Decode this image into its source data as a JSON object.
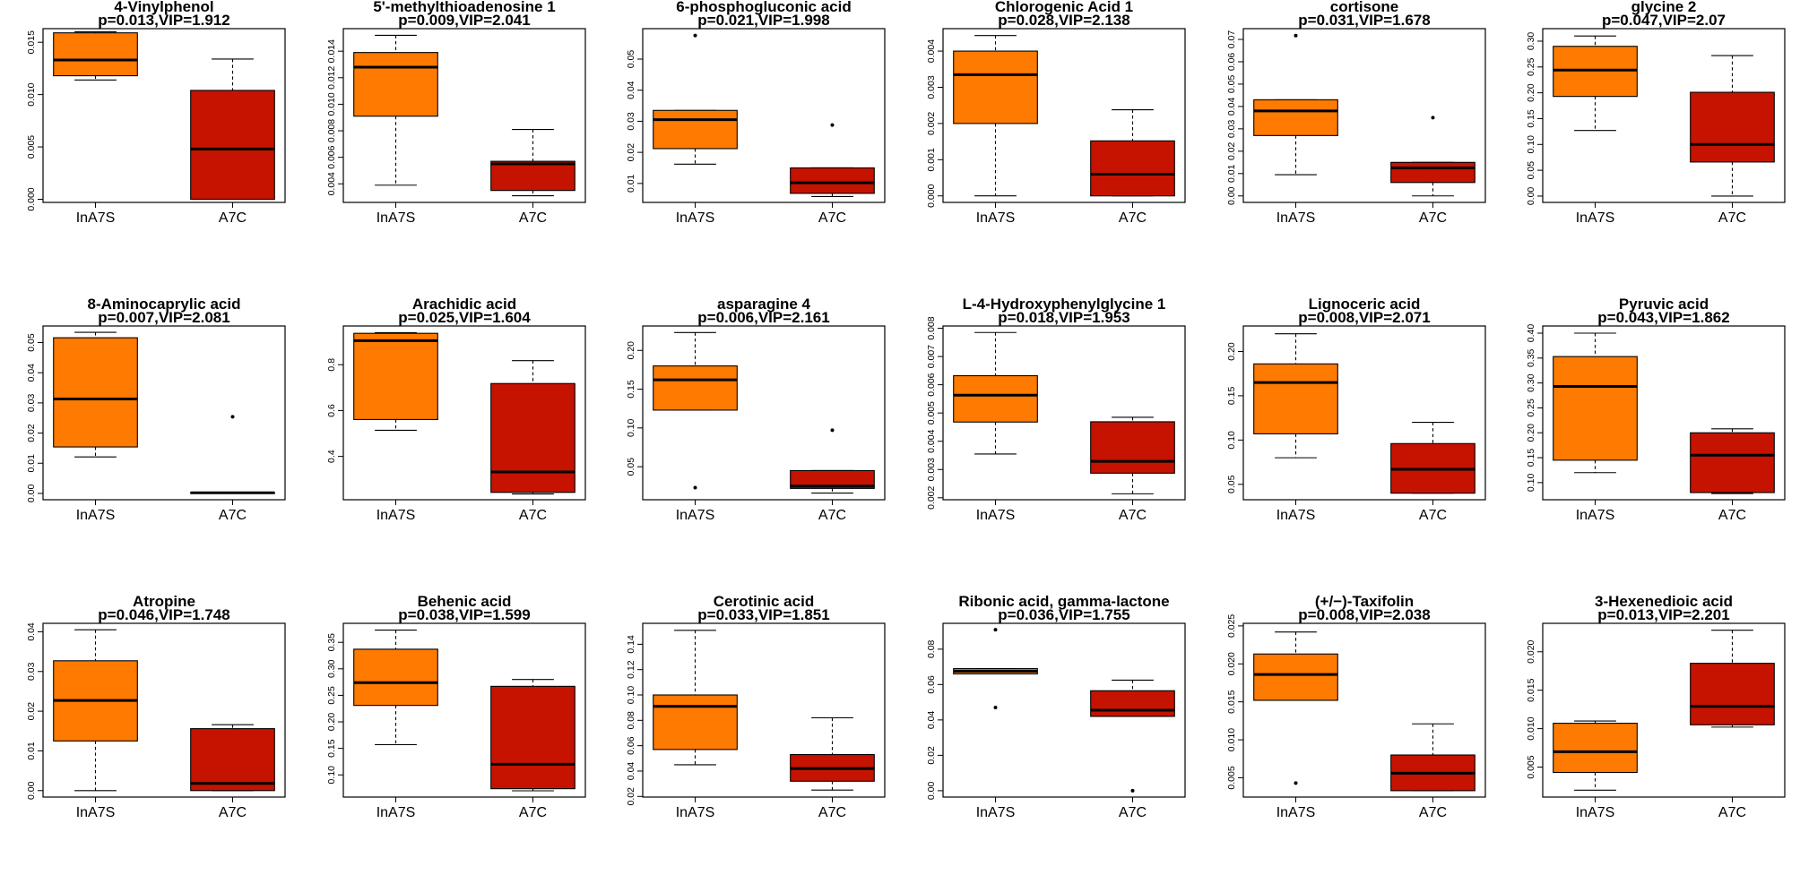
{
  "colors": {
    "group1_fill": "#fe7a00",
    "group2_fill": "#c51300",
    "frame": "#000000"
  },
  "chart_data": [
    {
      "type": "box",
      "title": "4-Vinylphenol",
      "subtitle": "p=0.013,VIP=1.912",
      "categories": [
        "InA7S",
        "A7C"
      ],
      "ylim": [
        -0.0003,
        0.0163
      ],
      "yticks": [
        0,
        0.005,
        0.01,
        0.015
      ],
      "ytick_labels": [
        "0.000",
        "0.005",
        "0.010",
        "0.015"
      ],
      "boxes": [
        {
          "whislo": 0.0114,
          "q1": 0.0118,
          "med": 0.0133,
          "q3": 0.0159,
          "whishi": 0.016,
          "outliers": []
        },
        {
          "whislo": 0,
          "q1": 0,
          "med": 0.0048,
          "q3": 0.0104,
          "whishi": 0.0134,
          "outliers": []
        }
      ]
    },
    {
      "type": "box",
      "title": "5'-methylthioadenosine 1",
      "subtitle": "p=0.009,VIP=2.041",
      "categories": [
        "InA7S",
        "A7C"
      ],
      "ylim": [
        0.0026,
        0.0157
      ],
      "yticks": [
        0.004,
        0.006,
        0.008,
        0.01,
        0.012,
        0.014
      ],
      "ytick_labels": [
        "0.004",
        "0.006",
        "0.008",
        "0.010",
        "0.012",
        "0.014"
      ],
      "boxes": [
        {
          "whislo": 0.0039,
          "q1": 0.0091,
          "med": 0.0128,
          "q3": 0.0139,
          "whishi": 0.0152,
          "outliers": []
        },
        {
          "whislo": 0.0031,
          "q1": 0.0035,
          "med": 0.0055,
          "q3": 0.0057,
          "whishi": 0.0081,
          "outliers": []
        }
      ]
    },
    {
      "type": "box",
      "title": "6-phosphogluconic acid",
      "subtitle": "p=0.021,VIP=1.998",
      "categories": [
        "InA7S",
        "A7C"
      ],
      "ylim": [
        0.0039,
        0.0598
      ],
      "yticks": [
        0.01,
        0.02,
        0.03,
        0.04,
        0.05
      ],
      "ytick_labels": [
        "0.01",
        "0.02",
        "0.03",
        "0.04",
        "0.05"
      ],
      "boxes": [
        {
          "whislo": 0.0162,
          "q1": 0.0212,
          "med": 0.0305,
          "q3": 0.0335,
          "whishi": 0.0335,
          "outliers": [
            0.0576
          ]
        },
        {
          "whislo": 0.0058,
          "q1": 0.0068,
          "med": 0.0102,
          "q3": 0.015,
          "whishi": 0.015,
          "outliers": [
            0.0288
          ]
        }
      ]
    },
    {
      "type": "box",
      "title": "Chlorogenic Acid 1",
      "subtitle": "p=0.028,VIP=2.138",
      "categories": [
        "InA7S",
        "A7C"
      ],
      "ylim": [
        -0.00018,
        0.00462
      ],
      "yticks": [
        0,
        0.001,
        0.002,
        0.003,
        0.004
      ],
      "ytick_labels": [
        "0.000",
        "0.001",
        "0.002",
        "0.003",
        "0.004"
      ],
      "boxes": [
        {
          "whislo": 0,
          "q1": 0.002,
          "med": 0.00335,
          "q3": 0.004,
          "whishi": 0.00443,
          "outliers": []
        },
        {
          "whislo": 0,
          "q1": 0,
          "med": 0.0006,
          "q3": 0.00152,
          "whishi": 0.00238,
          "outliers": []
        }
      ]
    },
    {
      "type": "box",
      "title": "cortisone",
      "subtitle": "p=0.031,VIP=1.678",
      "categories": [
        "InA7S",
        "A7C"
      ],
      "ylim": [
        -0.0029,
        0.0748
      ],
      "yticks": [
        0,
        0.01,
        0.02,
        0.03,
        0.04,
        0.05,
        0.06,
        0.07
      ],
      "ytick_labels": [
        "0.00",
        "0.01",
        "0.02",
        "0.03",
        "0.04",
        "0.05",
        "0.06",
        "0.07"
      ],
      "boxes": [
        {
          "whislo": 0.0095,
          "q1": 0.027,
          "med": 0.038,
          "q3": 0.043,
          "whishi": 0.043,
          "outliers": [
            0.0717
          ]
        },
        {
          "whislo": 0,
          "q1": 0.006,
          "med": 0.0125,
          "q3": 0.015,
          "whishi": 0.015,
          "outliers": [
            0.035
          ]
        }
      ]
    },
    {
      "type": "box",
      "title": "glycine 2",
      "subtitle": "p=0.047,VIP=2.07",
      "categories": [
        "InA7S",
        "A7C"
      ],
      "ylim": [
        -0.0122,
        0.3242
      ],
      "yticks": [
        0,
        0.05,
        0.1,
        0.15,
        0.2,
        0.25,
        0.3
      ],
      "ytick_labels": [
        "0.00",
        "0.05",
        "0.10",
        "0.15",
        "0.20",
        "0.25",
        "0.30"
      ],
      "boxes": [
        {
          "whislo": 0.127,
          "q1": 0.193,
          "med": 0.244,
          "q3": 0.29,
          "whishi": 0.31,
          "outliers": []
        },
        {
          "whislo": 0,
          "q1": 0.066,
          "med": 0.1,
          "q3": 0.201,
          "whishi": 0.272,
          "outliers": []
        }
      ]
    },
    {
      "type": "box",
      "title": "8-Aminocaprylic acid",
      "subtitle": "p=0.007,VIP=2.081",
      "categories": [
        "InA7S",
        "A7C"
      ],
      "ylim": [
        -0.0021,
        0.0555
      ],
      "yticks": [
        0,
        0.01,
        0.02,
        0.03,
        0.04,
        0.05
      ],
      "ytick_labels": [
        "0.00",
        "0.01",
        "0.02",
        "0.03",
        "0.04",
        "0.05"
      ],
      "boxes": [
        {
          "whislo": 0.0121,
          "q1": 0.0154,
          "med": 0.0313,
          "q3": 0.0516,
          "whishi": 0.0534,
          "outliers": []
        },
        {
          "whislo": 0,
          "q1": 0,
          "med": 0.0002,
          "q3": 0.0003,
          "whishi": 0.0003,
          "outliers": [
            0.0254
          ]
        }
      ]
    },
    {
      "type": "box",
      "title": "Arachidic acid",
      "subtitle": "p=0.025,VIP=1.604",
      "categories": [
        "InA7S",
        "A7C"
      ],
      "ylim": [
        0.211,
        0.969
      ],
      "yticks": [
        0.4,
        0.6,
        0.8
      ],
      "ytick_labels": [
        "0.4",
        "0.6",
        "0.8"
      ],
      "boxes": [
        {
          "whislo": 0.514,
          "q1": 0.561,
          "med": 0.905,
          "q3": 0.937,
          "whishi": 0.94,
          "outliers": []
        },
        {
          "whislo": 0.236,
          "q1": 0.243,
          "med": 0.332,
          "q3": 0.718,
          "whishi": 0.818,
          "outliers": []
        }
      ]
    },
    {
      "type": "box",
      "title": "asparagine 4",
      "subtitle": "p=0.006,VIP=2.161",
      "categories": [
        "InA7S",
        "A7C"
      ],
      "ylim": [
        0.0074,
        0.2315
      ],
      "yticks": [
        0.05,
        0.1,
        0.15,
        0.2
      ],
      "ytick_labels": [
        "0.05",
        "0.10",
        "0.15",
        "0.20"
      ],
      "boxes": [
        {
          "whislo": 0.123,
          "q1": 0.123,
          "med": 0.162,
          "q3": 0.18,
          "whishi": 0.223,
          "outliers": [
            0.023
          ]
        },
        {
          "whislo": 0.016,
          "q1": 0.022,
          "med": 0.025,
          "q3": 0.045,
          "whishi": 0.045,
          "outliers": [
            0.097
          ]
        }
      ]
    },
    {
      "type": "box",
      "title": "L-4-Hydroxyphenylglycine 1",
      "subtitle": "p=0.018,VIP=1.953",
      "categories": [
        "InA7S",
        "A7C"
      ],
      "ylim": [
        0.00193,
        0.00808
      ],
      "yticks": [
        0.002,
        0.003,
        0.004,
        0.005,
        0.006,
        0.007,
        0.008
      ],
      "ytick_labels": [
        "0.002",
        "0.003",
        "0.004",
        "0.005",
        "0.006",
        "0.007",
        "0.008"
      ],
      "boxes": [
        {
          "whislo": 0.00355,
          "q1": 0.00468,
          "med": 0.00563,
          "q3": 0.00632,
          "whishi": 0.00785,
          "outliers": []
        },
        {
          "whislo": 0.00214,
          "q1": 0.00287,
          "med": 0.00329,
          "q3": 0.00469,
          "whishi": 0.00485,
          "outliers": []
        }
      ]
    },
    {
      "type": "box",
      "title": "Lignoceric acid",
      "subtitle": "p=0.008,VIP=2.071",
      "categories": [
        "InA7S",
        "A7C"
      ],
      "ylim": [
        0.0326,
        0.2288
      ],
      "yticks": [
        0.05,
        0.1,
        0.15,
        0.2
      ],
      "ytick_labels": [
        "0.05",
        "0.10",
        "0.15",
        "0.20"
      ],
      "boxes": [
        {
          "whislo": 0.08,
          "q1": 0.107,
          "med": 0.165,
          "q3": 0.186,
          "whishi": 0.22,
          "outliers": []
        },
        {
          "whislo": 0.04,
          "q1": 0.04,
          "med": 0.067,
          "q3": 0.096,
          "whishi": 0.12,
          "outliers": []
        }
      ]
    },
    {
      "type": "box",
      "title": "Pyruvic acid",
      "subtitle": "p=0.043,VIP=1.862",
      "categories": [
        "InA7S",
        "A7C"
      ],
      "ylim": [
        0.0656,
        0.4144
      ],
      "yticks": [
        0.1,
        0.15,
        0.2,
        0.25,
        0.3,
        0.35,
        0.4
      ],
      "ytick_labels": [
        "0.10",
        "0.15",
        "0.20",
        "0.25",
        "0.30",
        "0.35",
        "0.40"
      ],
      "boxes": [
        {
          "whislo": 0.12,
          "q1": 0.145,
          "med": 0.293,
          "q3": 0.353,
          "whishi": 0.4,
          "outliers": []
        },
        {
          "whislo": 0.078,
          "q1": 0.08,
          "med": 0.155,
          "q3": 0.2,
          "whishi": 0.208,
          "outliers": []
        }
      ]
    },
    {
      "type": "box",
      "title": "Atropine",
      "subtitle": "p=0.046,VIP=1.748",
      "categories": [
        "InA7S",
        "A7C"
      ],
      "ylim": [
        -0.00163,
        0.04213
      ],
      "yticks": [
        0,
        0.01,
        0.02,
        0.03,
        0.04
      ],
      "ytick_labels": [
        "0.00",
        "0.01",
        "0.02",
        "0.03",
        "0.04"
      ],
      "boxes": [
        {
          "whislo": 0,
          "q1": 0.0125,
          "med": 0.0227,
          "q3": 0.0327,
          "whishi": 0.0405,
          "outliers": []
        },
        {
          "whislo": 0,
          "q1": 0,
          "med": 0.0018,
          "q3": 0.0156,
          "whishi": 0.0166,
          "outliers": []
        }
      ]
    },
    {
      "type": "box",
      "title": "Behenic acid",
      "subtitle": "p=0.038,VIP=1.599",
      "categories": [
        "InA7S",
        "A7C"
      ],
      "ylim": [
        0.0582,
        0.3858
      ],
      "yticks": [
        0.1,
        0.15,
        0.2,
        0.25,
        0.3,
        0.35
      ],
      "ytick_labels": [
        "0.10",
        "0.15",
        "0.20",
        "0.25",
        "0.30",
        "0.35"
      ],
      "boxes": [
        {
          "whislo": 0.157,
          "q1": 0.231,
          "med": 0.274,
          "q3": 0.337,
          "whishi": 0.373,
          "outliers": []
        },
        {
          "whislo": 0.07,
          "q1": 0.074,
          "med": 0.12,
          "q3": 0.267,
          "whishi": 0.28,
          "outliers": []
        }
      ]
    },
    {
      "type": "box",
      "title": "Cerotinic acid",
      "subtitle": "p=0.033,VIP=1.851",
      "categories": [
        "InA7S",
        "A7C"
      ],
      "ylim": [
        0.0195,
        0.1565
      ],
      "yticks": [
        0.02,
        0.04,
        0.06,
        0.08,
        0.1,
        0.12,
        0.14
      ],
      "ytick_labels": [
        "0.02",
        "0.04",
        "0.06",
        "0.08",
        "0.10",
        "0.12",
        "0.14"
      ],
      "boxes": [
        {
          "whislo": 0.045,
          "q1": 0.057,
          "med": 0.091,
          "q3": 0.1,
          "whishi": 0.151,
          "outliers": []
        },
        {
          "whislo": 0.025,
          "q1": 0.032,
          "med": 0.042,
          "q3": 0.053,
          "whishi": 0.082,
          "outliers": []
        }
      ]
    },
    {
      "type": "box",
      "title": "Ribonic acid, gamma-lactone",
      "subtitle": "p=0.036,VIP=1.755",
      "categories": [
        "InA7S",
        "A7C"
      ],
      "ylim": [
        -0.0036,
        0.0946
      ],
      "yticks": [
        0,
        0.02,
        0.04,
        0.06,
        0.08
      ],
      "ytick_labels": [
        "0.00",
        "0.02",
        "0.04",
        "0.06",
        "0.08"
      ],
      "boxes": [
        {
          "whislo": 0.066,
          "q1": 0.066,
          "med": 0.0675,
          "q3": 0.069,
          "whishi": 0.069,
          "outliers": [
            0.091,
            0.047
          ]
        },
        {
          "whislo": 0.042,
          "q1": 0.042,
          "med": 0.0455,
          "q3": 0.0565,
          "whishi": 0.0625,
          "outliers": [
            0
          ]
        }
      ]
    },
    {
      "type": "box",
      "title": "(+/−)-Taxifolin",
      "subtitle": "p=0.008,VIP=2.038",
      "categories": [
        "InA7S",
        "A7C"
      ],
      "ylim": [
        0.00246,
        0.02534
      ],
      "yticks": [
        0.005,
        0.01,
        0.015,
        0.02,
        0.025
      ],
      "ytick_labels": [
        "0.005",
        "0.010",
        "0.015",
        "0.020",
        "0.025"
      ],
      "boxes": [
        {
          "whislo": 0.0152,
          "q1": 0.0152,
          "med": 0.0186,
          "q3": 0.0213,
          "whishi": 0.0242,
          "outliers": [
            0.0043
          ]
        },
        {
          "whislo": 0.0033,
          "q1": 0.0033,
          "med": 0.0056,
          "q3": 0.008,
          "whishi": 0.0121,
          "outliers": []
        }
      ]
    },
    {
      "type": "box",
      "title": "3-Hexenedioic acid",
      "subtitle": "p=0.013,VIP=2.201",
      "categories": [
        "InA7S",
        "A7C"
      ],
      "ylim": [
        0.0011,
        0.0237
      ],
      "yticks": [
        0.005,
        0.01,
        0.015,
        0.02
      ],
      "ytick_labels": [
        "0.005",
        "0.010",
        "0.015",
        "0.020"
      ],
      "boxes": [
        {
          "whislo": 0.002,
          "q1": 0.0043,
          "med": 0.007,
          "q3": 0.0107,
          "whishi": 0.011,
          "outliers": []
        },
        {
          "whislo": 0.0102,
          "q1": 0.0105,
          "med": 0.0129,
          "q3": 0.0185,
          "whishi": 0.0228,
          "outliers": []
        }
      ]
    }
  ]
}
